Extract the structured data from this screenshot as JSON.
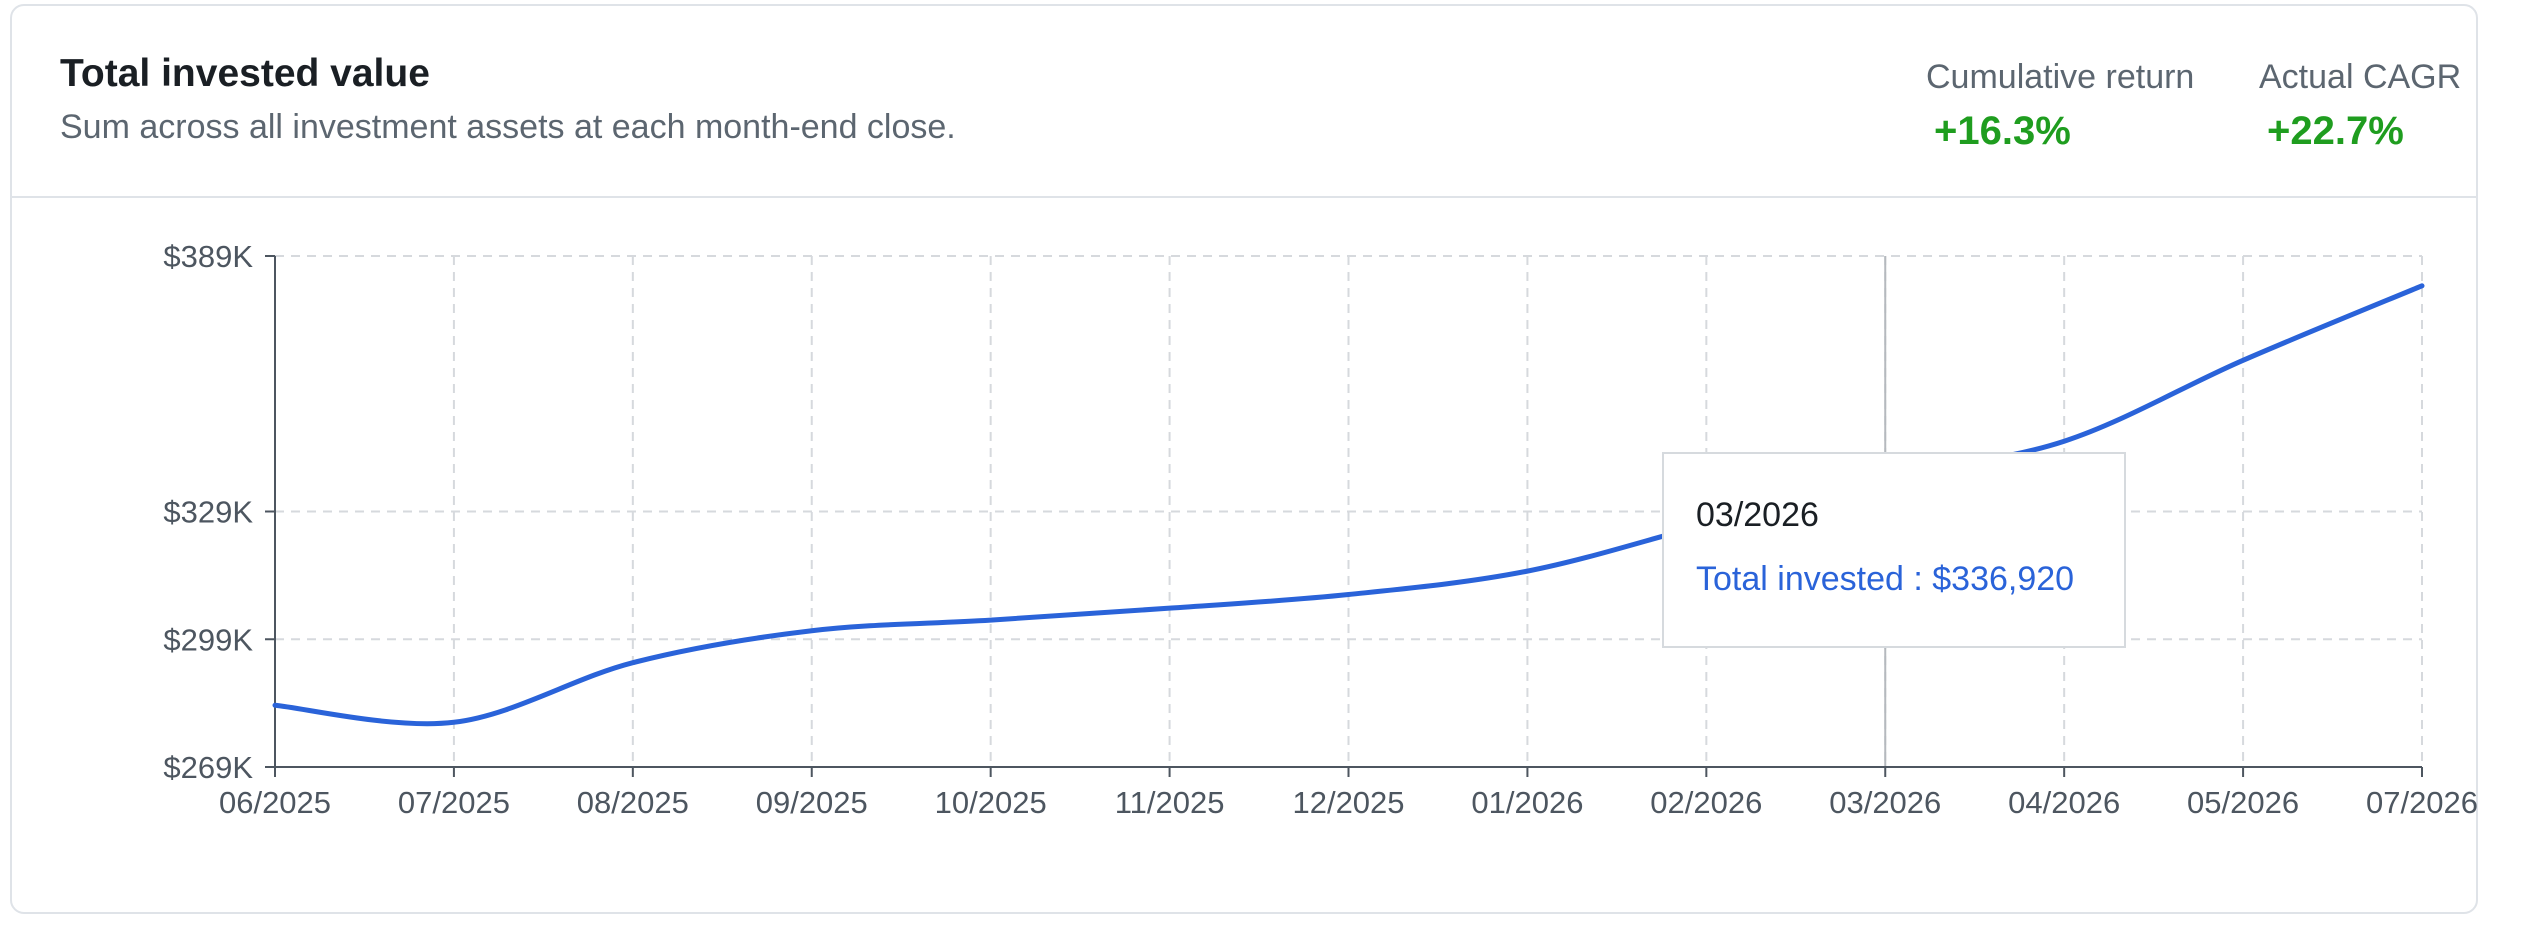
{
  "header": {
    "title": "Total invested value",
    "subtitle": "Sum across all investment assets at each month-end close."
  },
  "metrics": [
    {
      "label": "Cumulative return",
      "value": "+16.3%"
    },
    {
      "label": "Actual CAGR",
      "value": "+22.7%"
    }
  ],
  "colors": {
    "line": "#2a63d9",
    "positive": "#1f9d1f",
    "grid": "#d6d9dd",
    "axis": "#4d5660"
  },
  "tooltip": {
    "date": "03/2026",
    "series_label": "Total invested",
    "separator": " : ",
    "value": "$336,920"
  },
  "chart_data": {
    "type": "line",
    "title": "",
    "xlabel": "",
    "ylabel": "",
    "categories": [
      "06/2025",
      "07/2025",
      "08/2025",
      "09/2025",
      "10/2025",
      "11/2025",
      "12/2025",
      "01/2026",
      "02/2026",
      "03/2026",
      "04/2026",
      "05/2026",
      "07/2026"
    ],
    "y_ticks": [
      269000,
      299000,
      329000,
      389000
    ],
    "y_tick_labels": [
      "$269K",
      "$299K",
      "$329K",
      "$389K"
    ],
    "ylim": [
      269000,
      389000
    ],
    "grid": true,
    "active_index": 9,
    "series": [
      {
        "name": "Total invested",
        "values": [
          283500,
          279500,
          293500,
          301000,
          303500,
          306300,
          309500,
          315000,
          326000,
          336920,
          345500,
          364500,
          382000
        ]
      }
    ]
  }
}
